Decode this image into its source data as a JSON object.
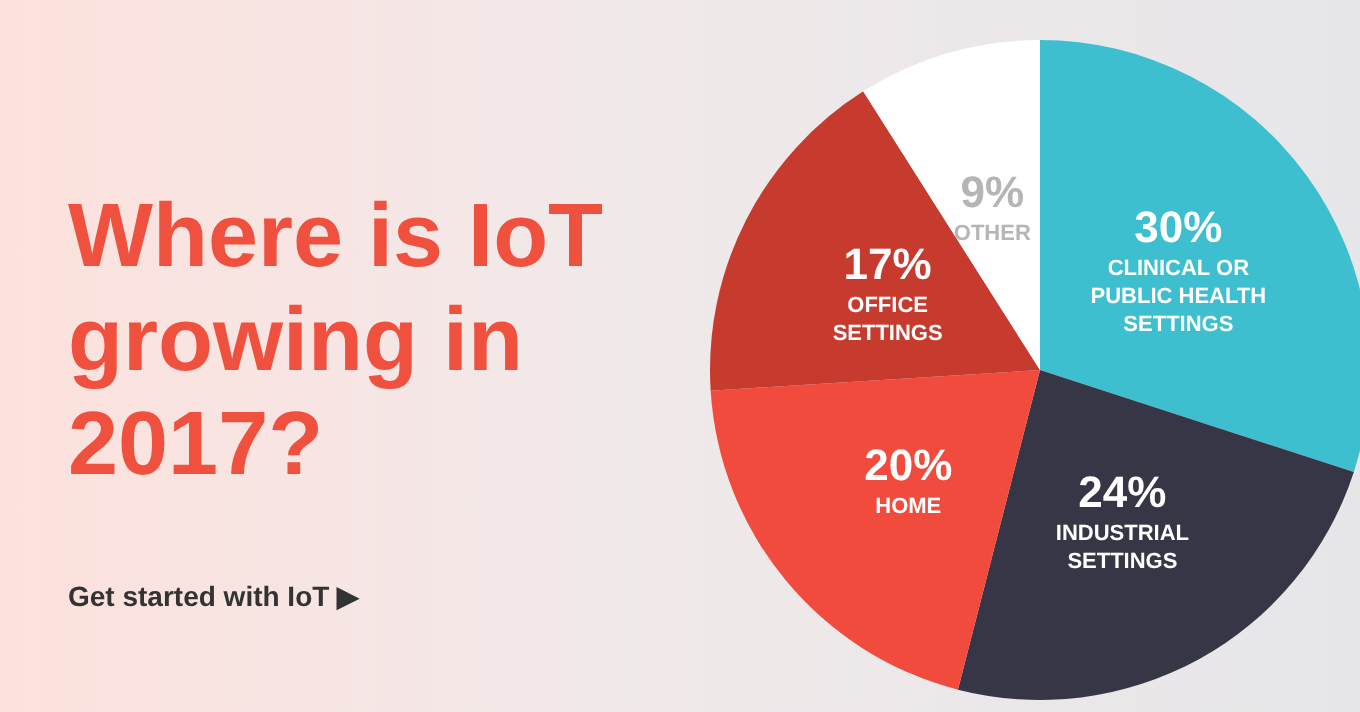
{
  "chart_data": {
    "type": "pie",
    "title": "Where is IoT growing in 2017?",
    "annotations": [
      "Get started with IoT ▶"
    ],
    "categories": [
      "CLINICAL OR PUBLIC HEALTH SETTINGS",
      "INDUSTRIAL SETTINGS",
      "HOME",
      "OFFICE SETTINGS",
      "OTHER"
    ],
    "values": [
      30,
      24,
      20,
      17,
      9
    ],
    "value_labels": [
      "30%",
      "24%",
      "20%",
      "17%",
      "9%"
    ],
    "colors": [
      "#3dbfcf",
      "#363646",
      "#f04b3c",
      "#c63b2e",
      "#ffffff"
    ],
    "legend": false
  }
}
